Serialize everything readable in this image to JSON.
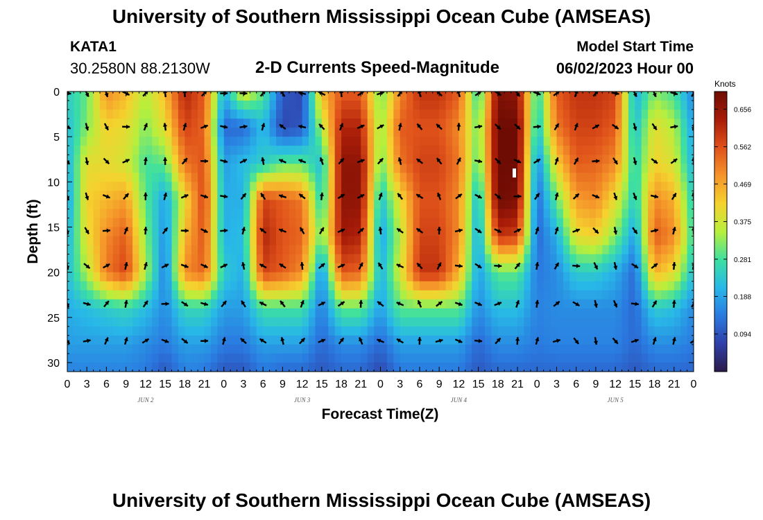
{
  "header": {
    "title": "University of Southern Mississippi Ocean Cube (AMSEAS)",
    "station": "KATA1",
    "coords": "30.2580N  88.2130W",
    "chart_title": "2-D Currents Speed-Magnitude",
    "model_label": "Model Start Time",
    "model_date": "06/02/2023 Hour 00"
  },
  "footer": {
    "title": "University of Southern Mississippi Ocean Cube (AMSEAS)"
  },
  "colors": {
    "colormap": [
      "#2b1a4a",
      "#2f3fa8",
      "#2a7ae0",
      "#28b8e8",
      "#3ee0a0",
      "#b8ef3c",
      "#f5d22e",
      "#f5942a",
      "#e0521a",
      "#a81c08",
      "#6e0c04"
    ],
    "arrow": "#000000",
    "marker": "#ffffff"
  },
  "chart_data": {
    "type": "heatmap",
    "title": "2-D Currents Speed-Magnitude",
    "xlabel": "Forecast Time(Z)",
    "ylabel": "Depth (ft)",
    "x_tick_labels": [
      "0",
      "3",
      "6",
      "9",
      "12",
      "15",
      "18",
      "21",
      "0",
      "3",
      "6",
      "9",
      "12",
      "15",
      "18",
      "21",
      "0",
      "3",
      "6",
      "9",
      "12",
      "15",
      "18",
      "21",
      "0",
      "3",
      "6",
      "9",
      "12",
      "15",
      "18",
      "21",
      "0"
    ],
    "x_range_hours": [
      0,
      96
    ],
    "day_labels": [
      {
        "label": "JUN 2",
        "hour": 12
      },
      {
        "label": "JUN 3",
        "hour": 36
      },
      {
        "label": "JUN 4",
        "hour": 60
      },
      {
        "label": "JUN 5",
        "hour": 84
      }
    ],
    "y_ticks": [
      0,
      5,
      10,
      15,
      20,
      25,
      30
    ],
    "y_range_ft": [
      0,
      31
    ],
    "colorbar": {
      "title": "Knots",
      "ticks": [
        "0.656",
        "0.562",
        "0.469",
        "0.375",
        "0.281",
        "0.188",
        "0.094"
      ],
      "tick_values": [
        0.656,
        0.562,
        0.469,
        0.375,
        0.281,
        0.188,
        0.094
      ],
      "range": [
        0.0,
        0.7
      ]
    },
    "arrow_depths_ft": [
      0.2,
      3.9,
      7.7,
      11.6,
      15.4,
      19.3,
      23.5,
      27.6
    ],
    "arrow_hours": [
      0,
      3,
      6,
      9,
      12,
      15,
      18,
      21,
      24,
      27,
      30,
      33,
      36,
      39,
      42,
      45,
      48,
      51,
      54,
      57,
      60,
      63,
      66,
      69,
      72,
      75,
      78,
      81,
      84,
      87,
      90,
      93,
      96
    ],
    "speed_profiles_knots": {
      "depths_ft": [
        0,
        4,
        8,
        12,
        16,
        20,
        24,
        28,
        31
      ],
      "hours": [
        0,
        3,
        6,
        9,
        12,
        15,
        18,
        21,
        24,
        27,
        30,
        33,
        36,
        39,
        42,
        45,
        48,
        51,
        54,
        57,
        60,
        63,
        66,
        69,
        72,
        75,
        78,
        81,
        84,
        87,
        90,
        93,
        96
      ],
      "values": [
        [
          0.25,
          0.22,
          0.2,
          0.18,
          0.2,
          0.22,
          0.2,
          0.18,
          0.15
        ],
        [
          0.3,
          0.32,
          0.4,
          0.42,
          0.4,
          0.35,
          0.22,
          0.18,
          0.15
        ],
        [
          0.5,
          0.42,
          0.4,
          0.45,
          0.5,
          0.52,
          0.24,
          0.18,
          0.15
        ],
        [
          0.45,
          0.4,
          0.38,
          0.48,
          0.55,
          0.58,
          0.26,
          0.18,
          0.15
        ],
        [
          0.35,
          0.32,
          0.28,
          0.3,
          0.32,
          0.35,
          0.22,
          0.16,
          0.14
        ],
        [
          0.45,
          0.4,
          0.3,
          0.18,
          0.16,
          0.14,
          0.16,
          0.14,
          0.1
        ],
        [
          0.62,
          0.58,
          0.52,
          0.4,
          0.45,
          0.5,
          0.26,
          0.18,
          0.15
        ],
        [
          0.55,
          0.54,
          0.56,
          0.58,
          0.56,
          0.54,
          0.26,
          0.18,
          0.14
        ],
        [
          0.2,
          0.12,
          0.18,
          0.2,
          0.2,
          0.24,
          0.18,
          0.14,
          0.1
        ],
        [
          0.4,
          0.12,
          0.22,
          0.2,
          0.22,
          0.2,
          0.18,
          0.14,
          0.1
        ],
        [
          0.3,
          0.22,
          0.24,
          0.58,
          0.62,
          0.58,
          0.28,
          0.18,
          0.14
        ],
        [
          0.1,
          0.08,
          0.3,
          0.55,
          0.56,
          0.55,
          0.28,
          0.18,
          0.12
        ],
        [
          0.08,
          0.1,
          0.3,
          0.52,
          0.54,
          0.5,
          0.28,
          0.18,
          0.12
        ],
        [
          0.45,
          0.35,
          0.22,
          0.24,
          0.3,
          0.15,
          0.14,
          0.12,
          0.1
        ],
        [
          0.55,
          0.62,
          0.66,
          0.66,
          0.64,
          0.56,
          0.3,
          0.16,
          0.12
        ],
        [
          0.55,
          0.62,
          0.66,
          0.66,
          0.62,
          0.54,
          0.3,
          0.16,
          0.12
        ],
        [
          0.3,
          0.32,
          0.3,
          0.22,
          0.18,
          0.2,
          0.18,
          0.12,
          0.08
        ],
        [
          0.5,
          0.55,
          0.52,
          0.4,
          0.35,
          0.38,
          0.3,
          0.18,
          0.14
        ],
        [
          0.6,
          0.56,
          0.58,
          0.56,
          0.58,
          0.6,
          0.3,
          0.18,
          0.14
        ],
        [
          0.6,
          0.56,
          0.58,
          0.56,
          0.58,
          0.6,
          0.3,
          0.18,
          0.14
        ],
        [
          0.55,
          0.5,
          0.52,
          0.5,
          0.5,
          0.46,
          0.3,
          0.18,
          0.14
        ],
        [
          0.25,
          0.3,
          0.28,
          0.2,
          0.18,
          0.18,
          0.16,
          0.12,
          0.1
        ],
        [
          0.68,
          0.7,
          0.7,
          0.7,
          0.6,
          0.3,
          0.22,
          0.16,
          0.12
        ],
        [
          0.66,
          0.7,
          0.7,
          0.68,
          0.58,
          0.3,
          0.22,
          0.16,
          0.12
        ],
        [
          0.25,
          0.22,
          0.15,
          0.12,
          0.12,
          0.14,
          0.15,
          0.14,
          0.12
        ],
        [
          0.55,
          0.52,
          0.42,
          0.3,
          0.2,
          0.16,
          0.16,
          0.15,
          0.12
        ],
        [
          0.6,
          0.58,
          0.55,
          0.48,
          0.4,
          0.24,
          0.16,
          0.15,
          0.12
        ],
        [
          0.6,
          0.58,
          0.54,
          0.5,
          0.42,
          0.24,
          0.16,
          0.15,
          0.12
        ],
        [
          0.58,
          0.55,
          0.5,
          0.4,
          0.32,
          0.2,
          0.16,
          0.15,
          0.12
        ],
        [
          0.2,
          0.22,
          0.25,
          0.24,
          0.18,
          0.12,
          0.12,
          0.12,
          0.1
        ],
        [
          0.32,
          0.4,
          0.42,
          0.5,
          0.55,
          0.46,
          0.24,
          0.16,
          0.12
        ],
        [
          0.28,
          0.35,
          0.38,
          0.46,
          0.5,
          0.4,
          0.22,
          0.16,
          0.12
        ],
        [
          0.15,
          0.18,
          0.2,
          0.24,
          0.26,
          0.22,
          0.16,
          0.14,
          0.12
        ]
      ]
    }
  }
}
